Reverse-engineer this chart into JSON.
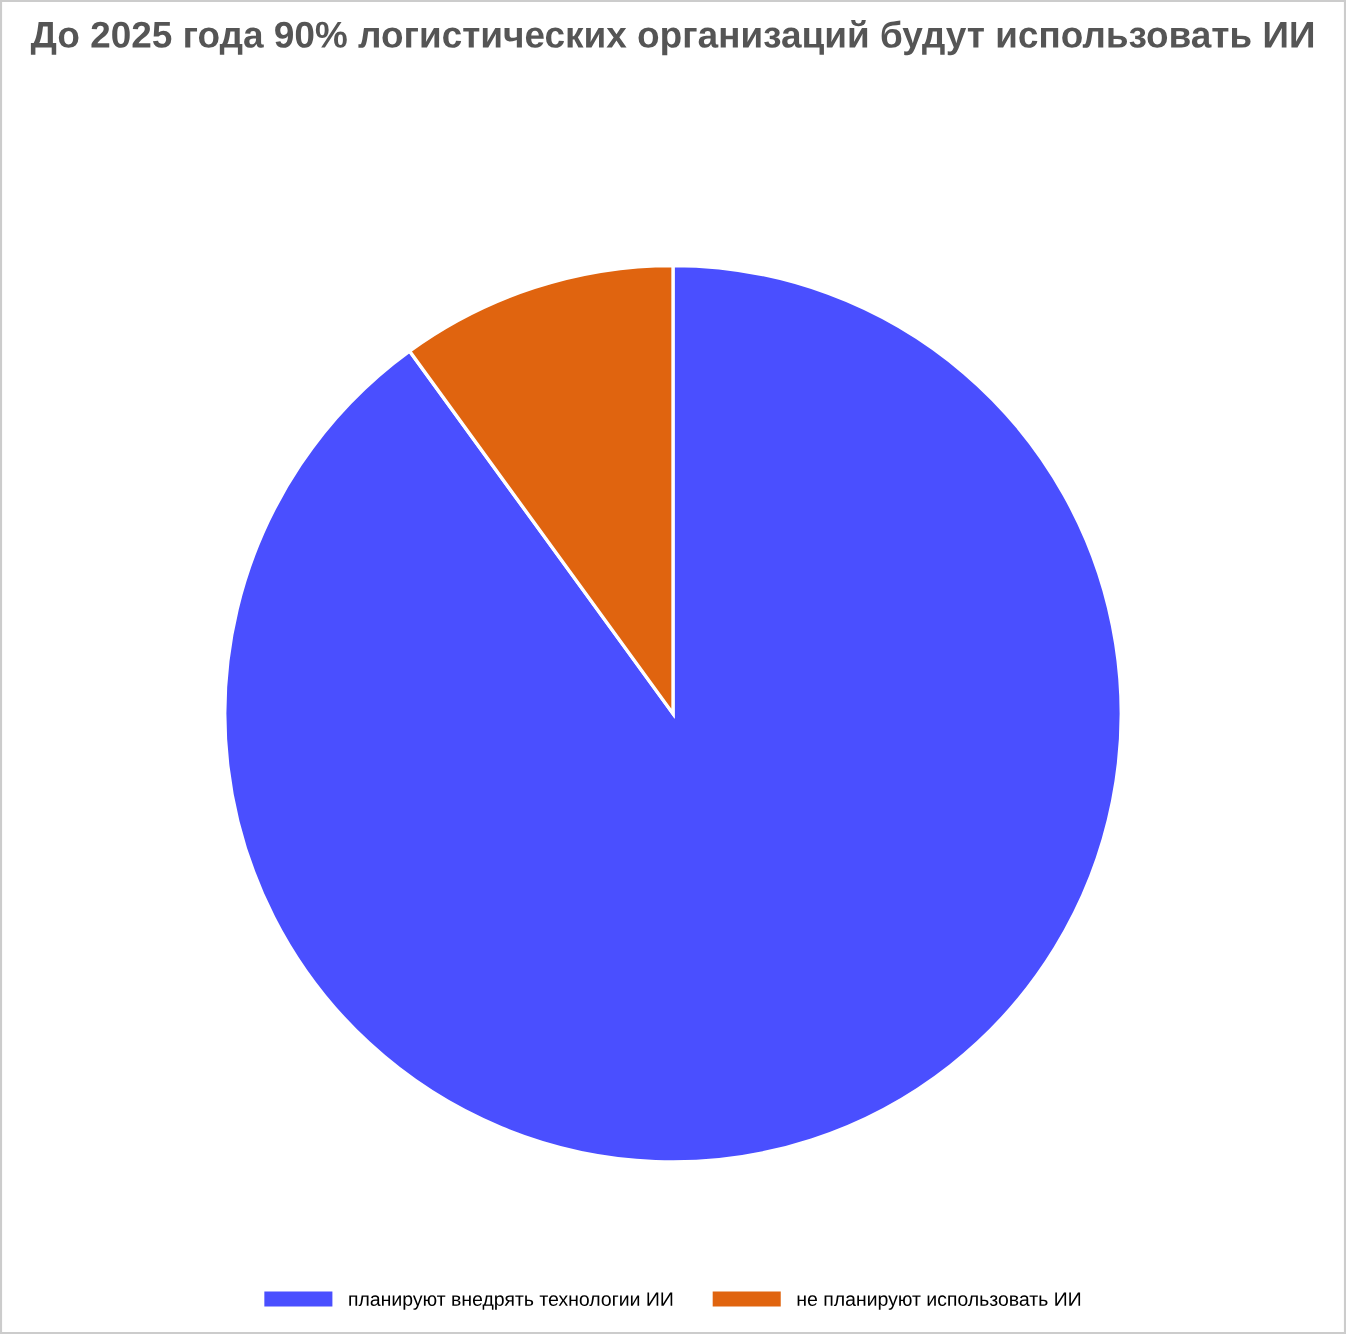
{
  "chart_data": {
    "type": "pie",
    "title": "До 2025 года 90% логистических организаций будут использовать ИИ",
    "categories": [
      "планируют внедрять технологии ИИ",
      "не планируют использовать ИИ"
    ],
    "values": [
      90,
      10
    ],
    "colors": [
      "#4a4fff",
      "#e0640f"
    ],
    "legend": "bottom"
  }
}
